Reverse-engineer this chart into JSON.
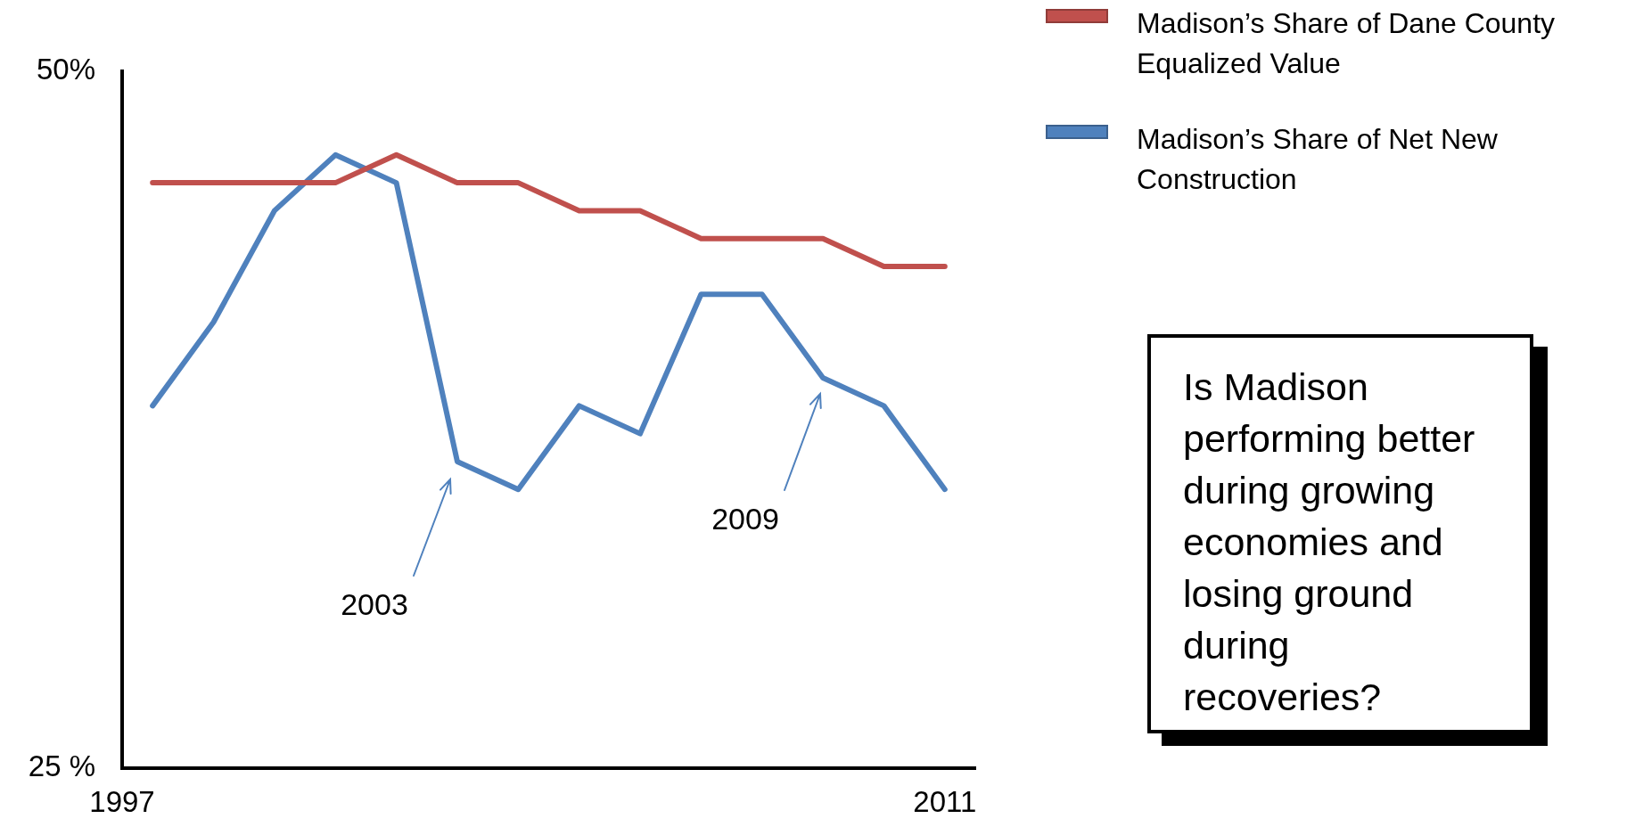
{
  "chart_data": {
    "type": "line",
    "x": [
      1998,
      1999,
      2000,
      2001,
      2002,
      2003,
      2004,
      2005,
      2006,
      2007,
      2008,
      2009,
      2010,
      2011
    ],
    "series": [
      {
        "name": "Madison’s Share of Dane County Equalized Value",
        "color": "#c0504d",
        "values": [
          46,
          46,
          46,
          46,
          47,
          46,
          46,
          45,
          45,
          44,
          44,
          44,
          43,
          43
        ]
      },
      {
        "name": "Madison’s Share of Net New Construction",
        "color": "#4f81bd",
        "values": [
          38,
          41,
          45,
          47,
          46,
          36,
          35,
          38,
          37,
          42,
          42,
          39,
          38,
          35
        ]
      }
    ],
    "xlim": [
      1997.5,
      2011.5
    ],
    "xticks": [
      {
        "value": 1997.5,
        "label": "1997"
      },
      2011
    ],
    "ylim": [
      25,
      50
    ],
    "yticks": [
      {
        "value": 25,
        "label": "25 %"
      },
      {
        "value": 50,
        "label": "50%"
      }
    ],
    "grid": false,
    "legend": "top right",
    "annotations": [
      "2003",
      "2009",
      "Is Madison performing better during growing economies and losing ground during recoveries?"
    ]
  }
}
